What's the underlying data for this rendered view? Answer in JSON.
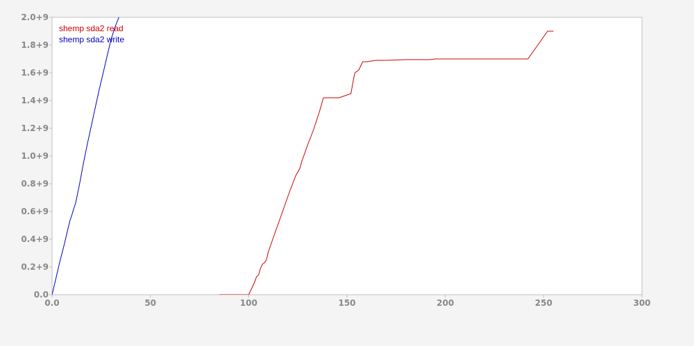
{
  "chart_data": {
    "type": "line",
    "title": "",
    "xlabel": "",
    "ylabel": "",
    "xlim": [
      0,
      300
    ],
    "ylim": [
      0,
      2000000000
    ],
    "x_ticks": [
      0,
      50,
      100,
      150,
      200,
      250,
      300
    ],
    "x_tick_labels": [
      "0.0",
      "50",
      "100",
      "150",
      "200",
      "250",
      "300"
    ],
    "y_ticks": [
      0,
      200000000,
      400000000,
      600000000,
      800000000,
      1000000000,
      1200000000,
      1400000000,
      1600000000,
      1800000000,
      2000000000
    ],
    "y_tick_labels": [
      "0.0",
      "0.2+9",
      "0.4+9",
      "0.6+9",
      "0.8+9",
      "1.0+9",
      "1.2+9",
      "1.4+9",
      "1.6+9",
      "1.8+9",
      "2.0+9"
    ],
    "grid": false,
    "legend_position": "top-left",
    "colors": {
      "background": "#f4f4f4",
      "plot_background": "#ffffff",
      "axis": "#c0c0c0",
      "tick_label": "#888888"
    },
    "series": [
      {
        "name": "shemp sda2 read",
        "color": "#cc0000",
        "x": [
          85,
          100,
          101,
          102,
          103,
          104,
          105,
          106,
          107,
          108,
          109,
          110,
          112,
          115,
          118,
          121,
          124,
          126,
          127,
          130,
          133,
          136,
          138,
          140,
          143,
          146,
          148,
          150,
          152,
          153,
          154,
          156,
          157,
          158,
          160,
          165,
          170,
          180,
          192,
          195,
          200,
          210,
          220,
          230,
          235,
          242,
          243,
          245,
          248,
          250,
          252,
          255
        ],
        "y": [
          0,
          0,
          30000000,
          60000000,
          90000000,
          130000000,
          140000000,
          190000000,
          220000000,
          230000000,
          250000000,
          310000000,
          390000000,
          510000000,
          630000000,
          750000000,
          860000000,
          910000000,
          960000000,
          1080000000,
          1190000000,
          1320000000,
          1420000000,
          1420000000,
          1420000000,
          1420000000,
          1430000000,
          1440000000,
          1450000000,
          1530000000,
          1600000000,
          1620000000,
          1650000000,
          1680000000,
          1680000000,
          1690000000,
          1690000000,
          1695000000,
          1695000000,
          1700000000,
          1700000000,
          1700000000,
          1700000000,
          1700000000,
          1700000000,
          1700000000,
          1720000000,
          1760000000,
          1820000000,
          1860000000,
          1900000000,
          1900000000
        ]
      },
      {
        "name": "shemp sda2 write",
        "color": "#0000bb",
        "x": [
          0,
          2,
          4,
          6,
          8,
          9,
          10,
          11,
          12,
          14,
          16,
          18,
          20,
          22,
          24,
          26,
          28,
          30,
          32,
          34
        ],
        "y": [
          0,
          120000000,
          240000000,
          350000000,
          470000000,
          530000000,
          570000000,
          620000000,
          660000000,
          800000000,
          950000000,
          1090000000,
          1220000000,
          1350000000,
          1480000000,
          1600000000,
          1720000000,
          1840000000,
          1930000000,
          2000000000
        ]
      }
    ]
  }
}
